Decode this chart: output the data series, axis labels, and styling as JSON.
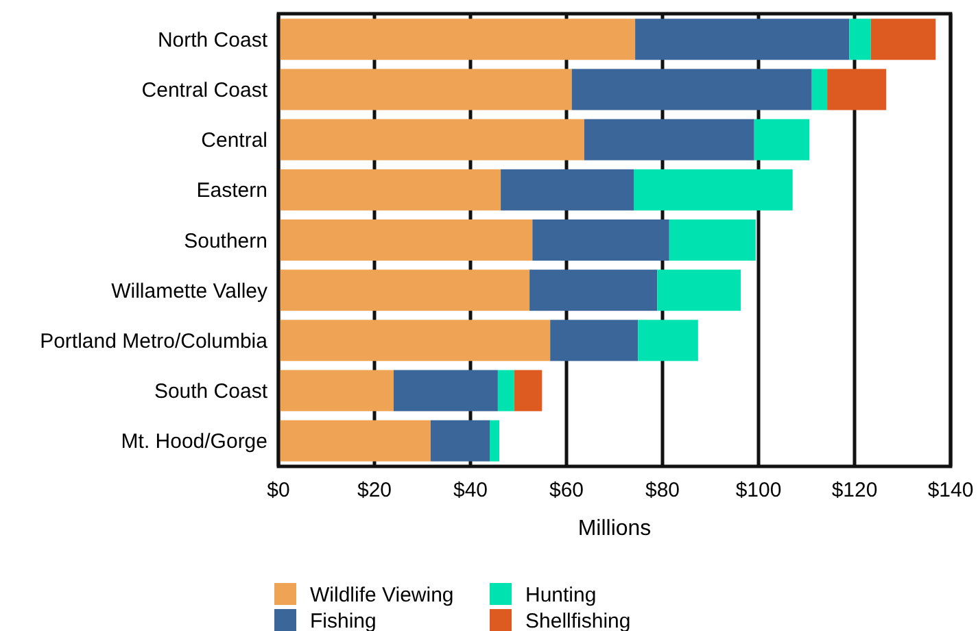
{
  "chart_data": {
    "type": "bar",
    "orientation": "horizontal",
    "stacked": true,
    "xlabel": "Millions",
    "categories": [
      "North Coast",
      "Central Coast",
      "Central",
      "Eastern",
      "Southern",
      "Willamette Valley",
      "Portland Metro/Columbia",
      "South Coast",
      "Mt. Hood/Gorge"
    ],
    "series": [
      {
        "name": "Wildlife Viewing",
        "color": "#efa354",
        "values": [
          74.3,
          61.1,
          63.7,
          46.3,
          52.9,
          52.3,
          56.6,
          24,
          31.7
        ]
      },
      {
        "name": "Fishing",
        "color": "#3b6699",
        "values": [
          44.6,
          50,
          35.4,
          27.7,
          28.5,
          26.6,
          18.3,
          21.7,
          12.3
        ]
      },
      {
        "name": "Hunting",
        "color": "#00e2b0",
        "values": [
          4.5,
          3.2,
          11.5,
          33.1,
          18,
          17.4,
          12.5,
          3.4,
          2
        ]
      },
      {
        "name": "Shellfishing",
        "color": "#dd5a20",
        "values": [
          13.5,
          12.3,
          null,
          null,
          null,
          null,
          null,
          5.8,
          null
        ]
      }
    ],
    "xlim": [
      0,
      140
    ],
    "xticks": [
      {
        "value": 0,
        "label": "$0"
      },
      {
        "value": 20,
        "label": "$20"
      },
      {
        "value": 40,
        "label": "$40"
      },
      {
        "value": 60,
        "label": "$60"
      },
      {
        "value": 80,
        "label": "$80"
      },
      {
        "value": 100,
        "label": "$100"
      },
      {
        "value": 120,
        "label": "$120"
      },
      {
        "value": 140,
        "label": "$140"
      }
    ],
    "grid": "x",
    "legend": "bottom"
  }
}
